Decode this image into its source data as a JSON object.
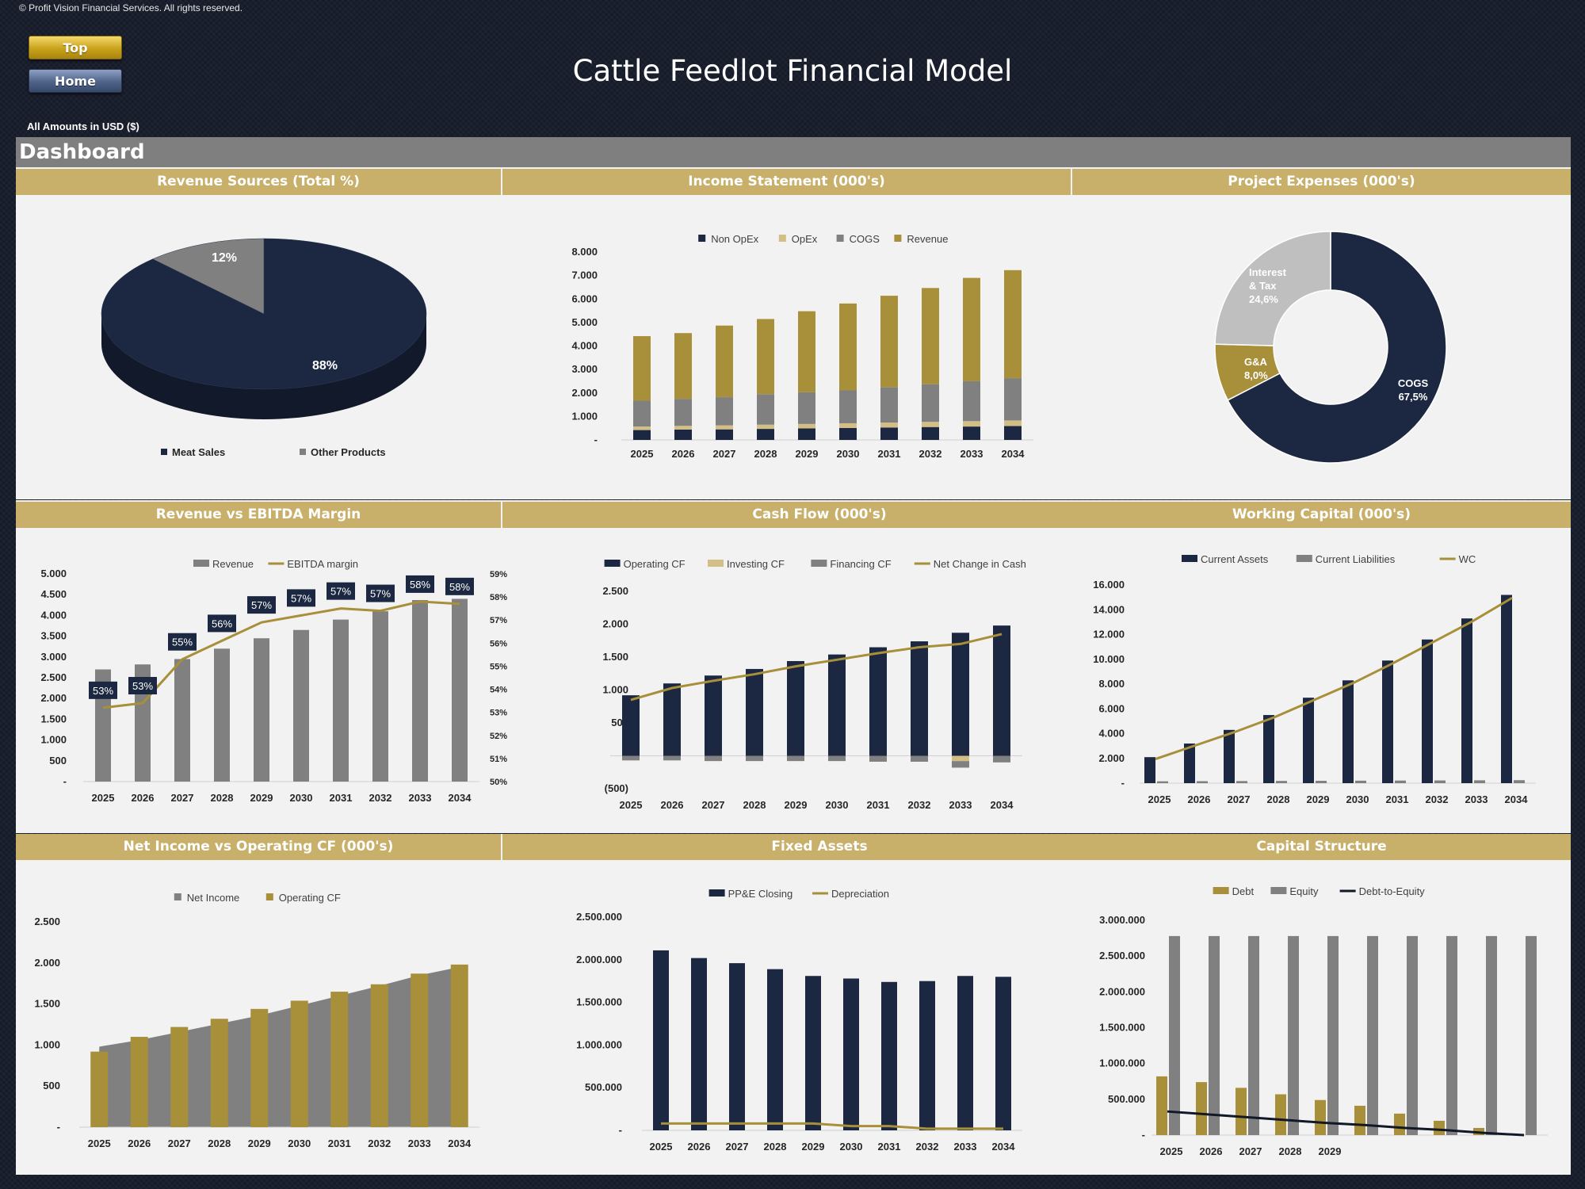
{
  "copyright": "© Profit Vision Financial Services. All rights reserved.",
  "nav": {
    "top_label": "Top",
    "home_label": "Home"
  },
  "title": "Cattle Feedlot Financial Model",
  "amounts_note": "All Amounts in  USD ($)",
  "dashboard_label": "Dashboard",
  "colors": {
    "navy": "#1c2841",
    "gold": "#a88f3a",
    "tan": "#d3bf86",
    "gray": "#808080",
    "lightgray": "#bfbfbf",
    "header": "#c8b06a"
  },
  "chart_data": [
    {
      "id": "revenue-sources",
      "type": "pie",
      "title": "Revenue Sources (Total %)",
      "labels": [
        "Meat Sales",
        "Other Products"
      ],
      "values": [
        88,
        12
      ],
      "data_labels": [
        "88%",
        "12%"
      ],
      "legend": "bottom"
    },
    {
      "id": "income-statement",
      "type": "bar",
      "stacked": true,
      "title": "Income Statement (000's)",
      "categories": [
        "2025",
        "2026",
        "2027",
        "2028",
        "2029",
        "2030",
        "2031",
        "2032",
        "2033",
        "2034"
      ],
      "series": [
        {
          "name": "Non OpEx",
          "values": [
            420,
            440,
            450,
            470,
            490,
            510,
            530,
            550,
            570,
            590
          ]
        },
        {
          "name": "OpEx",
          "values": [
            150,
            160,
            170,
            180,
            190,
            200,
            210,
            220,
            230,
            240
          ]
        },
        {
          "name": "COGS",
          "values": [
            1100,
            1150,
            1200,
            1300,
            1350,
            1400,
            1500,
            1600,
            1700,
            1800
          ]
        },
        {
          "name": "Revenue",
          "values": [
            2750,
            2800,
            3050,
            3200,
            3450,
            3700,
            3900,
            4100,
            4400,
            4600
          ]
        }
      ],
      "yticks": [
        "-",
        "1.000",
        "2.000",
        "3.000",
        "4.000",
        "5.000",
        "6.000",
        "7.000",
        "8.000"
      ],
      "ylim": [
        0,
        8000
      ],
      "legend": "top"
    },
    {
      "id": "project-expenses",
      "type": "pie",
      "donut": true,
      "title": "Project Expenses (000's)",
      "labels": [
        "COGS",
        "G&A",
        "Interest & Tax"
      ],
      "values": [
        67.5,
        8.0,
        24.6
      ],
      "data_labels": [
        "COGS\n67,5%",
        "G&A\n8,0%",
        "Interest\n& Tax\n24,6%"
      ]
    },
    {
      "id": "revenue-vs-ebitda",
      "type": "bar",
      "title": "Revenue vs EBITDA Margin",
      "categories": [
        "2025",
        "2026",
        "2027",
        "2028",
        "2029",
        "2030",
        "2031",
        "2032",
        "2033",
        "2034"
      ],
      "series": [
        {
          "name": "Revenue",
          "type": "bar",
          "values": [
            2700,
            2820,
            2950,
            3200,
            3450,
            3650,
            3900,
            4100,
            4370,
            4400
          ]
        },
        {
          "name": "EBITDA margin",
          "type": "line",
          "values": [
            53.2,
            53.4,
            55.3,
            56.1,
            56.9,
            57.2,
            57.5,
            57.4,
            57.8,
            57.7
          ]
        }
      ],
      "data_labels": [
        "53%",
        "53%",
        "55%",
        "56%",
        "57%",
        "57%",
        "57%",
        "57%",
        "58%",
        "58%"
      ],
      "yticks": [
        "-",
        "500",
        "1.000",
        "1.500",
        "2.000",
        "2.500",
        "3.000",
        "3.500",
        "4.000",
        "4.500",
        "5.000"
      ],
      "ylim": [
        0,
        5000
      ],
      "y2ticks": [
        "50%",
        "51%",
        "52%",
        "53%",
        "54%",
        "55%",
        "56%",
        "57%",
        "58%",
        "59%"
      ],
      "y2lim": [
        50,
        59
      ],
      "legend": "top"
    },
    {
      "id": "cash-flow",
      "type": "bar",
      "title": "Cash Flow (000's)",
      "categories": [
        "2025",
        "2026",
        "2027",
        "2028",
        "2029",
        "2030",
        "2031",
        "2032",
        "2033",
        "2034"
      ],
      "series": [
        {
          "name": "Operating CF",
          "type": "bar",
          "values": [
            920,
            1100,
            1220,
            1320,
            1440,
            1540,
            1650,
            1740,
            1870,
            1980
          ]
        },
        {
          "name": "Investing CF",
          "type": "bar",
          "values": [
            0,
            0,
            0,
            0,
            0,
            0,
            0,
            0,
            -80,
            0
          ]
        },
        {
          "name": "Financing CF",
          "type": "bar",
          "values": [
            -70,
            -70,
            -80,
            -80,
            -80,
            -80,
            -90,
            -90,
            -100,
            -100
          ]
        },
        {
          "name": "Net Change in Cash",
          "type": "line",
          "values": [
            850,
            1030,
            1140,
            1240,
            1360,
            1460,
            1560,
            1650,
            1700,
            1850
          ]
        }
      ],
      "yticks": [
        "(500)",
        "-",
        "500",
        "1.000",
        "1.500",
        "2.000",
        "2.500"
      ],
      "ylim": [
        -500,
        2500
      ],
      "legend": "top"
    },
    {
      "id": "working-capital",
      "type": "bar",
      "title": "Working Capital (000's)",
      "categories": [
        "2025",
        "2026",
        "2027",
        "2028",
        "2029",
        "2030",
        "2031",
        "2032",
        "2033",
        "2034"
      ],
      "series": [
        {
          "name": "Current Assets",
          "type": "bar",
          "values": [
            2100,
            3200,
            4300,
            5500,
            6900,
            8300,
            9900,
            11600,
            13300,
            15200
          ]
        },
        {
          "name": "Current Liabilities",
          "type": "bar",
          "values": [
            150,
            160,
            170,
            180,
            190,
            200,
            210,
            220,
            230,
            240
          ]
        },
        {
          "name": "WC",
          "type": "line",
          "values": [
            1950,
            3040,
            4130,
            5320,
            6710,
            8100,
            9690,
            11380,
            13070,
            14960
          ]
        }
      ],
      "yticks": [
        "-",
        "2.000",
        "4.000",
        "6.000",
        "8.000",
        "10.000",
        "12.000",
        "14.000",
        "16.000"
      ],
      "ylim": [
        0,
        16000
      ],
      "legend": "top"
    },
    {
      "id": "net-income-vs-ocf",
      "type": "bar",
      "title": "Net Income vs Operating CF (000's)",
      "categories": [
        "2025",
        "2026",
        "2027",
        "2028",
        "2029",
        "2030",
        "2031",
        "2032",
        "2033",
        "2034"
      ],
      "series": [
        {
          "name": "Net Income",
          "type": "area",
          "values": [
            980,
            1060,
            1160,
            1260,
            1360,
            1480,
            1600,
            1720,
            1850,
            1950
          ]
        },
        {
          "name": "Operating CF",
          "type": "bar",
          "values": [
            920,
            1100,
            1220,
            1320,
            1440,
            1540,
            1650,
            1740,
            1870,
            1980
          ]
        }
      ],
      "yticks": [
        "-",
        "500",
        "1.000",
        "1.500",
        "2.000",
        "2.500"
      ],
      "ylim": [
        0,
        2500
      ],
      "legend": "top"
    },
    {
      "id": "fixed-assets",
      "type": "bar",
      "title": "Fixed Assets",
      "categories": [
        "2025",
        "2026",
        "2027",
        "2028",
        "2029",
        "2030",
        "2031",
        "2032",
        "2033",
        "2034"
      ],
      "series": [
        {
          "name": "PP&E Closing",
          "type": "bar",
          "values": [
            2110000,
            2020000,
            1960000,
            1890000,
            1810000,
            1780000,
            1740000,
            1750000,
            1810000,
            1800000
          ]
        },
        {
          "name": "Depreciation",
          "type": "line",
          "values": [
            80000,
            80000,
            80000,
            80000,
            80000,
            50000,
            50000,
            20000,
            20000,
            20000
          ]
        }
      ],
      "yticks": [
        "-",
        "500.000",
        "1.000.000",
        "1.500.000",
        "2.000.000",
        "2.500.000"
      ],
      "ylim": [
        0,
        2500000
      ],
      "legend": "top"
    },
    {
      "id": "capital-structure",
      "type": "bar",
      "title": "Capital Structure",
      "categories": [
        "2025",
        "2026",
        "2027",
        "2028",
        "2029",
        "",
        "",
        "",
        "",
        ""
      ],
      "series": [
        {
          "name": "Debt",
          "type": "bar",
          "values": [
            820000,
            740000,
            660000,
            570000,
            490000,
            410000,
            300000,
            200000,
            100000,
            0
          ]
        },
        {
          "name": "Equity",
          "type": "bar",
          "values": [
            2780000,
            2780000,
            2780000,
            2780000,
            2780000,
            2780000,
            2780000,
            2780000,
            2780000,
            2780000
          ]
        },
        {
          "name": "Debt-to-Equity",
          "type": "line",
          "values": [
            330000,
            290000,
            250000,
            210000,
            170000,
            140000,
            100000,
            70000,
            30000,
            0
          ]
        }
      ],
      "yticks": [
        "-",
        "500.000",
        "1.000.000",
        "1.500.000",
        "2.000.000",
        "2.500.000",
        "3.000.000"
      ],
      "ylim": [
        0,
        3000000
      ],
      "legend": "top"
    }
  ]
}
